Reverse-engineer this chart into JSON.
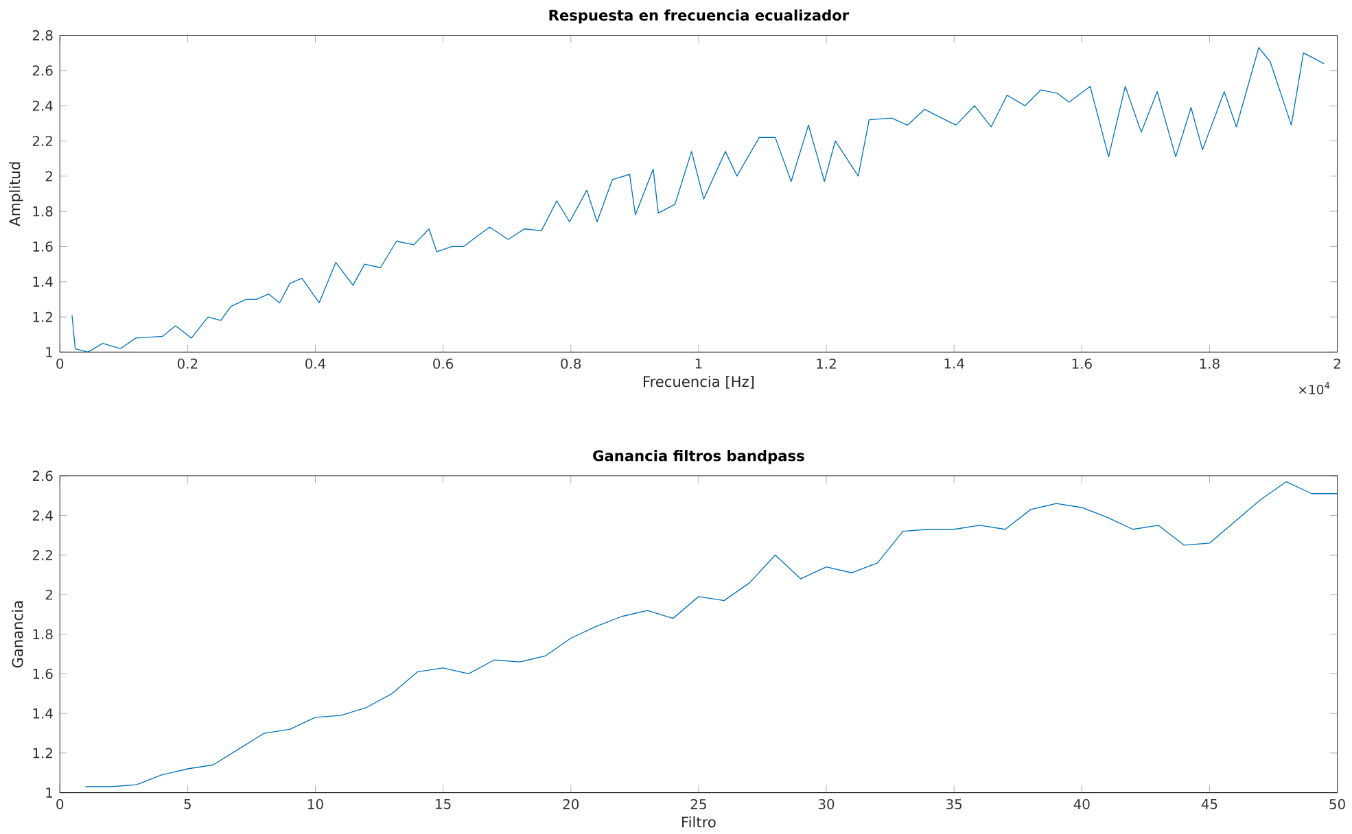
{
  "chart_data": [
    {
      "type": "line",
      "title": "Respuesta en frecuencia ecualizador",
      "xlabel": "Frecuencia [Hz]",
      "ylabel": "Amplitud",
      "annotations": [
        "×10$^{4}$"
      ],
      "xlim": [
        0,
        2
      ],
      "ylim": [
        1,
        2.8
      ],
      "xticks": [
        0,
        0.2,
        0.4,
        0.6,
        0.8,
        1,
        1.2,
        1.4,
        1.6,
        1.8,
        2
      ],
      "yticks": [
        1,
        1.2,
        1.4,
        1.6,
        1.8,
        2,
        2.2,
        2.4,
        2.6,
        2.8
      ],
      "x": [
        0.019,
        0.024,
        0.033,
        0.044,
        0.067,
        0.095,
        0.119,
        0.161,
        0.181,
        0.206,
        0.232,
        0.252,
        0.268,
        0.292,
        0.308,
        0.327,
        0.344,
        0.36,
        0.379,
        0.406,
        0.432,
        0.459,
        0.477,
        0.502,
        0.527,
        0.554,
        0.578,
        0.59,
        0.614,
        0.632,
        0.654,
        0.673,
        0.702,
        0.727,
        0.754,
        0.778,
        0.798,
        0.825,
        0.841,
        0.865,
        0.892,
        0.901,
        0.929,
        0.937,
        0.963,
        0.989,
        1.008,
        1.042,
        1.06,
        1.095,
        1.12,
        1.145,
        1.172,
        1.197,
        1.214,
        1.25,
        1.267,
        1.302,
        1.327,
        1.354,
        1.375,
        1.403,
        1.432,
        1.458,
        1.483,
        1.511,
        1.536,
        1.562,
        1.58,
        1.613,
        1.642,
        1.668,
        1.693,
        1.718,
        1.747,
        1.771,
        1.789,
        1.823,
        1.842,
        1.877,
        1.895,
        1.928,
        1.947,
        1.979
      ],
      "series": [
        {
          "color": "#0072bd",
          "values": [
            1.21,
            1.02,
            1.01,
            1.0,
            1.05,
            1.02,
            1.08,
            1.09,
            1.15,
            1.08,
            1.2,
            1.18,
            1.26,
            1.3,
            1.3,
            1.33,
            1.28,
            1.39,
            1.42,
            1.28,
            1.51,
            1.38,
            1.5,
            1.48,
            1.63,
            1.61,
            1.7,
            1.57,
            1.6,
            1.6,
            1.66,
            1.71,
            1.64,
            1.7,
            1.69,
            1.86,
            1.74,
            1.92,
            1.74,
            1.98,
            2.01,
            1.78,
            2.04,
            1.79,
            1.84,
            2.14,
            1.87,
            2.14,
            2.0,
            2.22,
            2.22,
            1.97,
            2.29,
            1.97,
            2.2,
            2.0,
            2.32,
            2.33,
            2.29,
            2.38,
            2.34,
            2.29,
            2.4,
            2.28,
            2.46,
            2.4,
            2.49,
            2.47,
            2.42,
            2.51,
            2.11,
            2.51,
            2.25,
            2.48,
            2.11,
            2.39,
            2.15,
            2.48,
            2.28,
            2.73,
            2.65,
            2.29,
            2.7,
            2.64
          ]
        }
      ]
    },
    {
      "type": "line",
      "title": "Ganancia filtros bandpass",
      "xlabel": "Filtro",
      "ylabel": "Ganancia",
      "xlim": [
        0,
        50
      ],
      "ylim": [
        1,
        2.6
      ],
      "xticks": [
        0,
        5,
        10,
        15,
        20,
        25,
        30,
        35,
        40,
        45,
        50
      ],
      "yticks": [
        1,
        1.2,
        1.4,
        1.6,
        1.8,
        2,
        2.2,
        2.4,
        2.6
      ],
      "x": [
        1,
        2,
        3,
        4,
        5,
        6,
        7,
        8,
        9,
        10,
        11,
        12,
        13,
        14,
        15,
        16,
        17,
        18,
        19,
        20,
        21,
        22,
        23,
        24,
        25,
        26,
        27,
        28,
        29,
        30,
        31,
        32,
        33,
        34,
        35,
        36,
        37,
        38,
        39,
        40,
        41,
        42,
        43,
        44,
        45,
        46,
        47,
        48,
        49,
        50
      ],
      "series": [
        {
          "color": "#0072bd",
          "values": [
            1.03,
            1.03,
            1.04,
            1.09,
            1.12,
            1.14,
            1.22,
            1.3,
            1.32,
            1.38,
            1.39,
            1.43,
            1.5,
            1.61,
            1.63,
            1.6,
            1.67,
            1.66,
            1.69,
            1.78,
            1.84,
            1.89,
            1.92,
            1.88,
            1.99,
            1.97,
            2.06,
            2.2,
            2.08,
            2.14,
            2.11,
            2.16,
            2.32,
            2.33,
            2.33,
            2.35,
            2.33,
            2.43,
            2.46,
            2.44,
            2.39,
            2.33,
            2.35,
            2.25,
            2.26,
            2.37,
            2.48,
            2.57,
            2.51,
            2.51
          ]
        }
      ]
    }
  ]
}
